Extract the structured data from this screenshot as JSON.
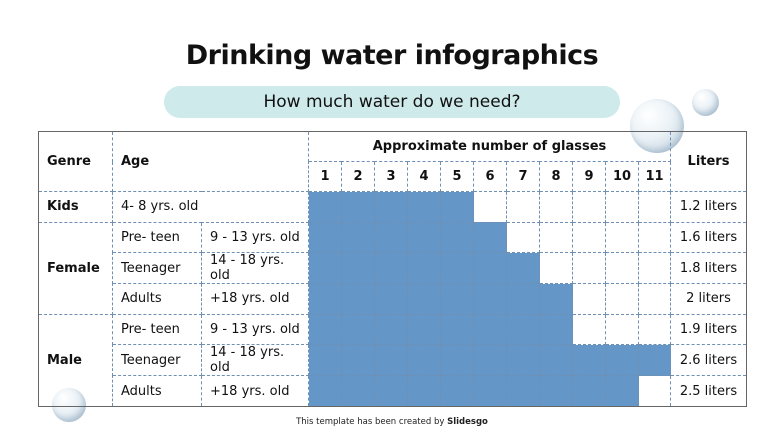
{
  "title": "Drinking water infographics",
  "subtitle": "How much water do we need?",
  "table": {
    "headers": {
      "genre": "Genre",
      "age": "Age",
      "glasses": "Approximate number of glasses",
      "liters": "Liters"
    },
    "glass_numbers": [
      "1",
      "2",
      "3",
      "4",
      "5",
      "6",
      "7",
      "8",
      "9",
      "10",
      "11"
    ],
    "groups": [
      {
        "genre": "Kids",
        "rows": [
          {
            "stage": "4- 8 yrs. old",
            "range": "",
            "glasses": 5,
            "liters": "1.2 liters"
          }
        ]
      },
      {
        "genre": "Female",
        "rows": [
          {
            "stage": "Pre- teen",
            "range": "9 - 13 yrs. old",
            "glasses": 6,
            "liters": "1.6 liters"
          },
          {
            "stage": "Teenager",
            "range": "14 - 18 yrs. old",
            "glasses": 7,
            "liters": "1.8 liters"
          },
          {
            "stage": "Adults",
            "range": "+18 yrs. old",
            "glasses": 8,
            "liters": "2 liters"
          }
        ]
      },
      {
        "genre": "Male",
        "rows": [
          {
            "stage": "Pre- teen",
            "range": "9 - 13 yrs. old",
            "glasses": 8,
            "liters": "1.9 liters"
          },
          {
            "stage": "Teenager",
            "range": "14 - 18 yrs. old",
            "glasses": 11,
            "liters": "2.6 liters"
          },
          {
            "stage": "Adults",
            "range": "+18 yrs. old",
            "glasses": 10,
            "liters": "2.5 liters"
          }
        ]
      }
    ],
    "fill_color": "#6497c7"
  },
  "footer": {
    "text": "This template has been created by ",
    "brand": "Slidesgo"
  }
}
